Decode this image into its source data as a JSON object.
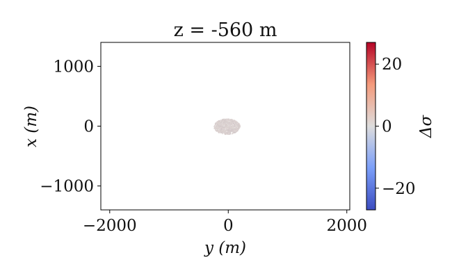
{
  "chart_data": {
    "type": "scatter",
    "title": "z = -560 m",
    "xlabel": "y (m)",
    "ylabel": "x (m)",
    "xlim": [
      -2150,
      2050
    ],
    "ylim": [
      -1400,
      1400
    ],
    "xticks": [
      -2000,
      0,
      2000
    ],
    "xtick_labels": [
      "−2000",
      "0",
      "2000"
    ],
    "yticks": [
      -1000,
      0,
      1000
    ],
    "ytick_labels": [
      "−1000",
      "0",
      "1000"
    ],
    "grid": false,
    "legend": "none",
    "colorbar": {
      "label": "Δσ",
      "range": [
        -27,
        27
      ],
      "ticks": [
        -20,
        0,
        20
      ],
      "tick_labels": [
        "−20",
        "0",
        "20"
      ],
      "colormap": "coolwarm",
      "colors": {
        "low": "#3b4cc0",
        "mid": "#dddcdc",
        "high": "#b40426"
      }
    },
    "points": {
      "description_of_region": "dense cluster of small-valued cells",
      "center": [
        -30,
        0
      ],
      "radius_y": 220,
      "radius_x": 130,
      "value_range": [
        -1,
        1
      ]
    }
  }
}
